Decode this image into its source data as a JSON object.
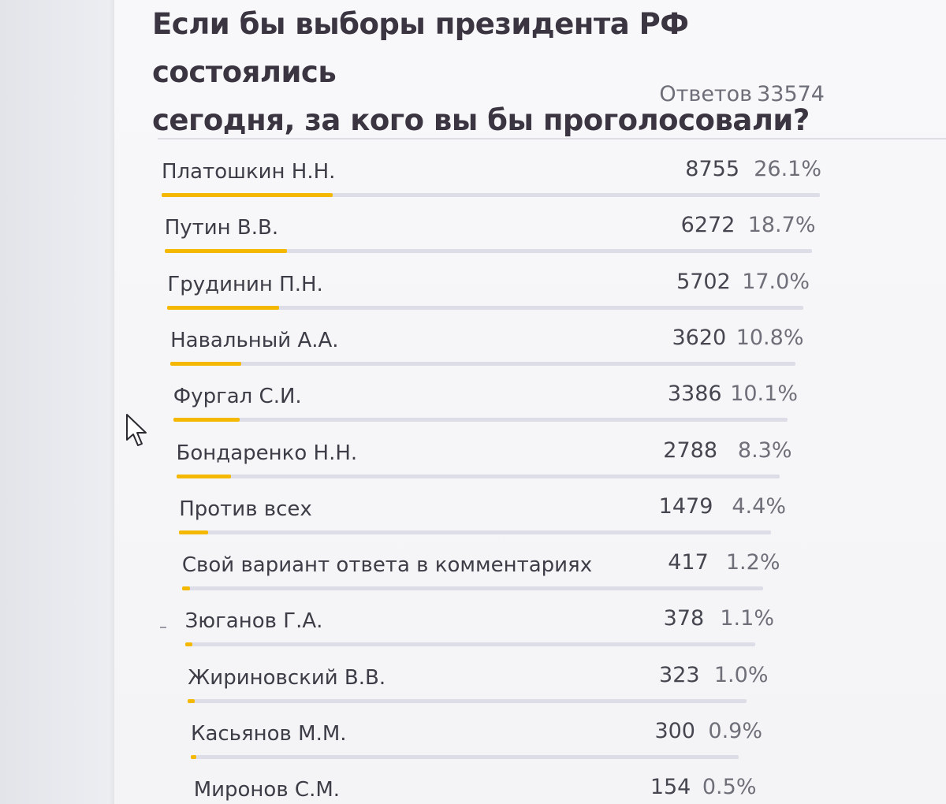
{
  "poll": {
    "title_line1": "Если бы выборы президента РФ состоялись",
    "title_line2": "сегодня, за кого вы бы проголосовали?",
    "answers_label": "Ответов",
    "answers_count": "33574"
  },
  "results": [
    {
      "name": "Платошкин Н.Н.",
      "count": "8755",
      "percent": "26.1%",
      "share": 0.261
    },
    {
      "name": "Путин В.В.",
      "count": "6272",
      "percent": "18.7%",
      "share": 0.187
    },
    {
      "name": "Грудинин П.Н.",
      "count": "5702",
      "percent": "17.0%",
      "share": 0.17
    },
    {
      "name": "Навальный А.А.",
      "count": "3620",
      "percent": "10.8%",
      "share": 0.108
    },
    {
      "name": "Фургал С.И.",
      "count": "3386",
      "percent": "10.1%",
      "share": 0.101
    },
    {
      "name": "Бондаренко Н.Н.",
      "count": "2788",
      "percent": "8.3%",
      "share": 0.083
    },
    {
      "name": "Против всех",
      "count": "1479",
      "percent": "4.4%",
      "share": 0.044
    },
    {
      "name": "Свой вариант ответа в комментариях",
      "count": "417",
      "percent": "1.2%",
      "share": 0.012
    },
    {
      "name": "Зюганов Г.А.",
      "count": "378",
      "percent": "1.1%",
      "share": 0.011
    },
    {
      "name": "Жириновский В.В.",
      "count": "323",
      "percent": "1.0%",
      "share": 0.01
    },
    {
      "name": "Касьянов М.М.",
      "count": "300",
      "percent": "0.9%",
      "share": 0.009
    },
    {
      "name": "Миронов С.М.",
      "count": "154",
      "percent": "0.5%",
      "share": 0.005
    }
  ],
  "colors": {
    "bar_fill": "#f5b800",
    "bar_track": "#dcdde6"
  },
  "icons": {
    "cursor": "mouse-pointer-icon"
  }
}
